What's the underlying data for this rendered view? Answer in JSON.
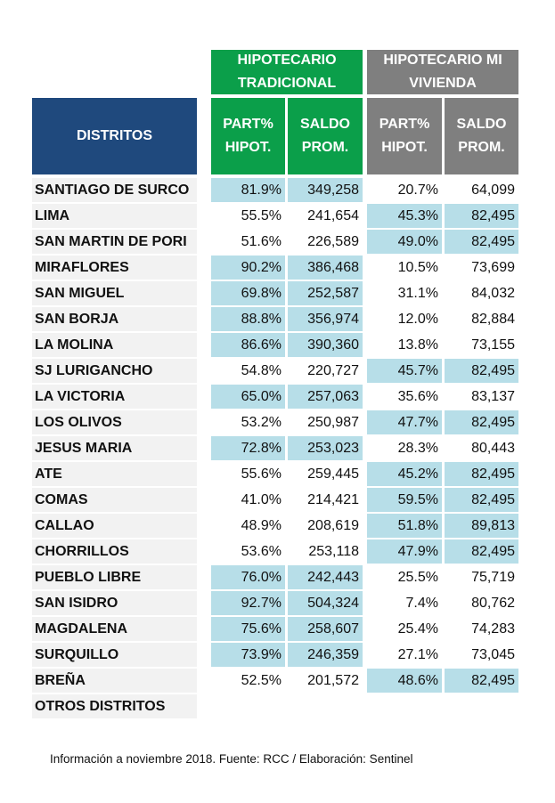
{
  "table": {
    "highlight_color": "#b7dee8",
    "header_groups": [
      {
        "label": "HIPOTECARIO TRADICIONAL",
        "color": "#0b9f4a"
      },
      {
        "label": "HIPOTECARIO MI VIVIENDA",
        "color": "#7f7f7f"
      }
    ],
    "columns": [
      "DISTRITOS",
      "PART% HIPOT.",
      "SALDO PROM.",
      "PART% HIPOT.",
      "SALDO PROM."
    ],
    "district_header_color": "#1f497d",
    "rows": [
      {
        "district": "SANTIAGO DE SURCO",
        "cells": [
          "81.9%",
          "349,258",
          "20.7%",
          "64,099"
        ],
        "highlight_group": 0
      },
      {
        "district": "LIMA",
        "cells": [
          "55.5%",
          "241,654",
          "45.3%",
          "82,495"
        ],
        "highlight_group": 1
      },
      {
        "district": "SAN MARTIN DE PORI",
        "cells": [
          "51.6%",
          "226,589",
          "49.0%",
          "82,495"
        ],
        "highlight_group": 1
      },
      {
        "district": "MIRAFLORES",
        "cells": [
          "90.2%",
          "386,468",
          "10.5%",
          "73,699"
        ],
        "highlight_group": 0
      },
      {
        "district": "SAN MIGUEL",
        "cells": [
          "69.8%",
          "252,587",
          "31.1%",
          "84,032"
        ],
        "highlight_group": 0
      },
      {
        "district": "SAN BORJA",
        "cells": [
          "88.8%",
          "356,974",
          "12.0%",
          "82,884"
        ],
        "highlight_group": 0
      },
      {
        "district": "LA MOLINA",
        "cells": [
          "86.6%",
          "390,360",
          "13.8%",
          "73,155"
        ],
        "highlight_group": 0
      },
      {
        "district": "SJ LURIGANCHO",
        "cells": [
          "54.8%",
          "220,727",
          "45.7%",
          "82,495"
        ],
        "highlight_group": 1
      },
      {
        "district": "LA VICTORIA",
        "cells": [
          "65.0%",
          "257,063",
          "35.6%",
          "83,137"
        ],
        "highlight_group": 0
      },
      {
        "district": "LOS OLIVOS",
        "cells": [
          "53.2%",
          "250,987",
          "47.7%",
          "82,495"
        ],
        "highlight_group": 1
      },
      {
        "district": "JESUS MARIA",
        "cells": [
          "72.8%",
          "253,023",
          "28.3%",
          "80,443"
        ],
        "highlight_group": 0
      },
      {
        "district": "ATE",
        "cells": [
          "55.6%",
          "259,445",
          "45.2%",
          "82,495"
        ],
        "highlight_group": 1
      },
      {
        "district": "COMAS",
        "cells": [
          "41.0%",
          "214,421",
          "59.5%",
          "82,495"
        ],
        "highlight_group": 1
      },
      {
        "district": "CALLAO",
        "cells": [
          "48.9%",
          "208,619",
          "51.8%",
          "89,813"
        ],
        "highlight_group": 1
      },
      {
        "district": "CHORRILLOS",
        "cells": [
          "53.6%",
          "253,118",
          "47.9%",
          "82,495"
        ],
        "highlight_group": 1
      },
      {
        "district": "PUEBLO LIBRE",
        "cells": [
          "76.0%",
          "242,443",
          "25.5%",
          "75,719"
        ],
        "highlight_group": 0
      },
      {
        "district": "SAN ISIDRO",
        "cells": [
          "92.7%",
          "504,324",
          "7.4%",
          "80,762"
        ],
        "highlight_group": 0
      },
      {
        "district": "MAGDALENA",
        "cells": [
          "75.6%",
          "258,607",
          "25.4%",
          "74,283"
        ],
        "highlight_group": 0
      },
      {
        "district": "SURQUILLO",
        "cells": [
          "73.9%",
          "246,359",
          "27.1%",
          "73,045"
        ],
        "highlight_group": 0
      },
      {
        "district": "BREÑA",
        "cells": [
          "52.5%",
          "201,572",
          "48.6%",
          "82,495"
        ],
        "highlight_group": 1
      },
      {
        "district": "OTROS DISTRITOS",
        "cells": []
      }
    ],
    "footer": "Información a noviembre 2018. Fuente: RCC / Elaboración: Sentinel"
  }
}
